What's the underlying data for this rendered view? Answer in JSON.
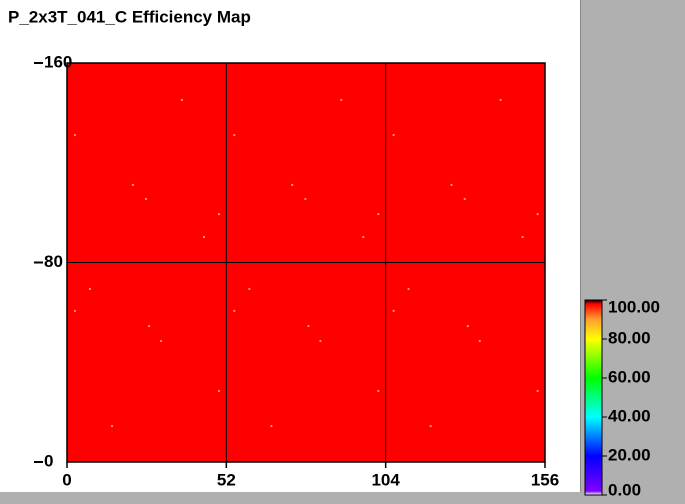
{
  "chart_data": {
    "type": "heatmap",
    "title": "P_2x3T_041_C Efficiency Map",
    "base_value": 98,
    "x": [
      37.5,
      2.6,
      21.5,
      25.8,
      49.6,
      44.7,
      7.5,
      2.6,
      26.8,
      30.7,
      49.6,
      14.7,
      89.5,
      54.6,
      73.5,
      77.8,
      101.6,
      96.7,
      59.5,
      54.6,
      78.8,
      82.7,
      101.6,
      66.7,
      141.5,
      106.6,
      125.5,
      129.8,
      153.6,
      148.7,
      111.5,
      106.6,
      130.8,
      134.7,
      153.6,
      118.7
    ],
    "y": [
      145.2,
      131.1,
      111.1,
      105.5,
      99.4,
      90.2,
      69.4,
      60.6,
      54.5,
      48.5,
      28.5,
      14.4,
      145.2,
      131.1,
      111.1,
      105.5,
      99.4,
      90.2,
      69.4,
      60.6,
      54.5,
      48.5,
      28.5,
      14.4,
      145.2,
      131.1,
      111.1,
      105.5,
      99.4,
      90.2,
      69.4,
      60.6,
      54.5,
      48.5,
      28.5,
      14.4
    ],
    "values": [
      90,
      90,
      90,
      90,
      90,
      90,
      90,
      90,
      90,
      90,
      90,
      90,
      90,
      90,
      90,
      90,
      90,
      90,
      90,
      90,
      90,
      90,
      90,
      90,
      90,
      90,
      90,
      90,
      90,
      90,
      90,
      90,
      90,
      90,
      90,
      90
    ],
    "xlim": [
      0,
      156
    ],
    "ylim": [
      0,
      160
    ],
    "xticks": [
      0,
      52,
      104,
      156
    ],
    "yticks": [
      0,
      80,
      160
    ],
    "grid": true,
    "colormap": [
      [
        0,
        "#ffffff"
      ],
      [
        2,
        "#8000ff"
      ],
      [
        20,
        "#0000ff"
      ],
      [
        40,
        "#00ffff"
      ],
      [
        60,
        "#00ff00"
      ],
      [
        80,
        "#ffff00"
      ],
      [
        90,
        "#ffa030"
      ],
      [
        98,
        "#ff0000"
      ],
      [
        100,
        "#000000"
      ]
    ],
    "clim": [
      0,
      100
    ],
    "cticks": [
      {
        "value": 0,
        "label": "0.00"
      },
      {
        "value": 20,
        "label": "20.00"
      },
      {
        "value": 40,
        "label": "40.00"
      },
      {
        "value": 60,
        "label": "60.00"
      },
      {
        "value": 80,
        "label": "80.00"
      },
      {
        "value": 100,
        "label": "100.00"
      }
    ]
  }
}
